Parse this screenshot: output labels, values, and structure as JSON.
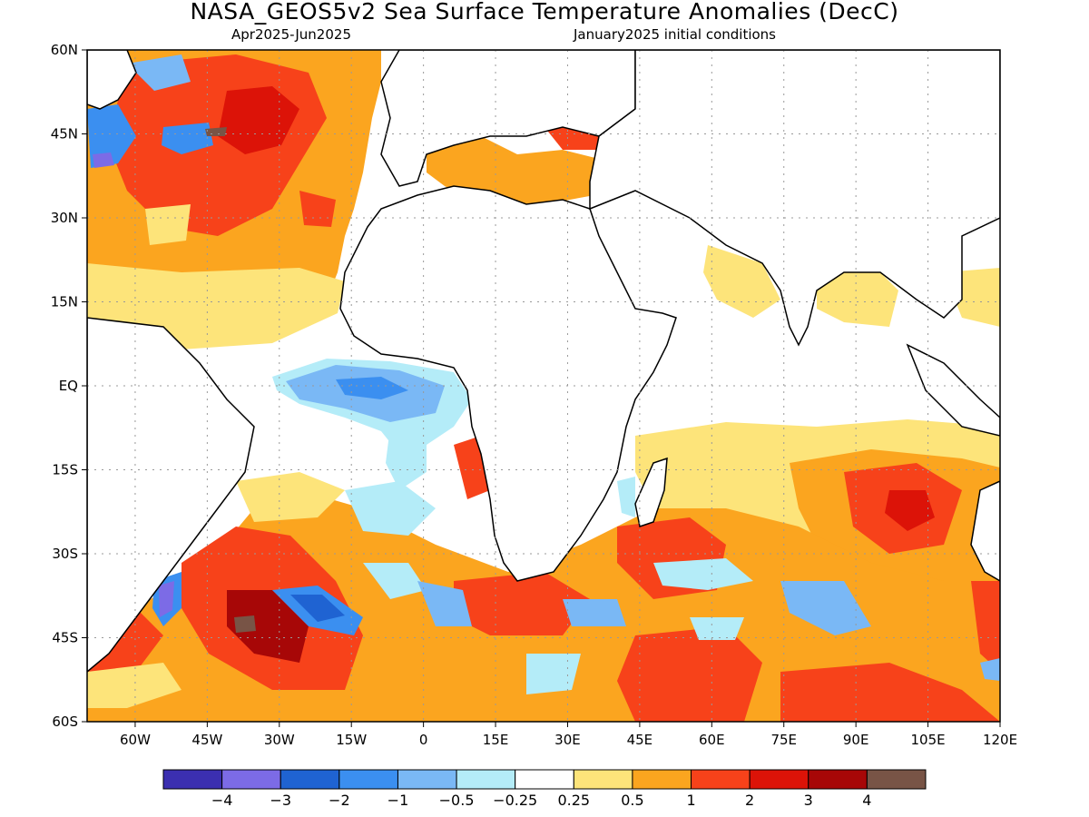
{
  "header": {
    "title": "NASA_GEOS5v2 Sea Surface Temperature Anomalies (DecC)",
    "period": "Apr2025-Jun2025",
    "init": "January2025 initial conditions"
  },
  "map": {
    "lat_labels": [
      "60N",
      "45N",
      "30N",
      "15N",
      "EQ",
      "15S",
      "30S",
      "45S",
      "60S"
    ],
    "lon_labels": [
      "60W",
      "45W",
      "30W",
      "15W",
      "0",
      "15E",
      "30E",
      "45E",
      "60E",
      "75E",
      "90E",
      "105E",
      "120E"
    ],
    "lon_range": [
      -70,
      120
    ],
    "lat_range": [
      -60,
      60
    ],
    "ocean_background": "#ffffff",
    "land_color": "#ffffff"
  },
  "colorbar": {
    "colors": [
      "#3b2fb0",
      "#7c6be6",
      "#1f63d2",
      "#3b8ff0",
      "#7ab8f5",
      "#b4ecf8",
      "#ffffff",
      "#fde47a",
      "#fba51f",
      "#f7421a",
      "#dc1308",
      "#a70707",
      "#785446"
    ],
    "labels": [
      "-4",
      "-3",
      "-2",
      "-1",
      "-0.5",
      "-0.25",
      "0.25",
      "0.5",
      "1",
      "2",
      "3",
      "4"
    ]
  }
}
